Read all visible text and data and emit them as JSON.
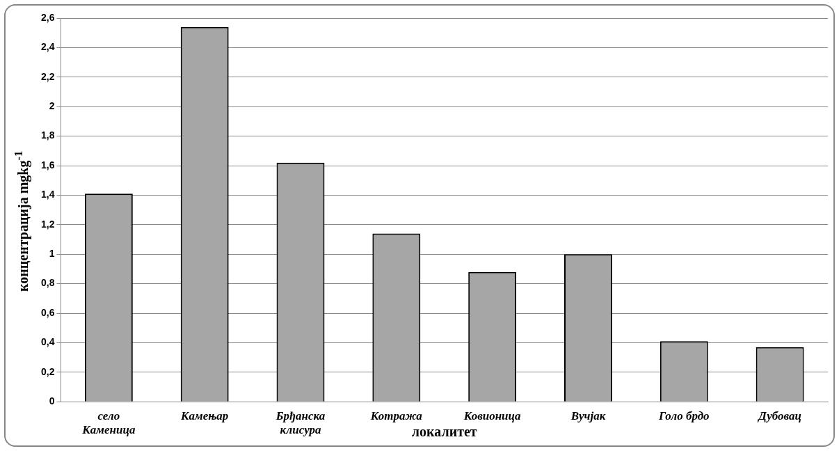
{
  "chart_data": {
    "type": "bar",
    "xlabel": "локалитет",
    "ylabel": "концентрација  mgkg$^{-1}$",
    "categories": [
      "село Каменица",
      "Камењар",
      "Брђанска клисура",
      "Котража",
      "Ковионица",
      "Вучјак",
      "Голо брдо",
      "Дубовац"
    ],
    "values": [
      1.41,
      2.54,
      1.62,
      1.14,
      0.88,
      1.0,
      0.41,
      0.37
    ],
    "color": "#a6a6a6",
    "ylim": [
      0,
      2.6
    ],
    "yticks": [
      {
        "value": 0,
        "label": "0"
      },
      {
        "value": 0.2,
        "label": "0,2"
      },
      {
        "value": 0.4,
        "label": "0,4"
      },
      {
        "value": 0.6,
        "label": "0,6"
      },
      {
        "value": 0.8,
        "label": "0,8"
      },
      {
        "value": 1,
        "label": "1"
      },
      {
        "value": 1.2,
        "label": "1,2"
      },
      {
        "value": 1.4,
        "label": "1,4"
      },
      {
        "value": 1.6,
        "label": "1,6"
      },
      {
        "value": 1.8,
        "label": "1,8"
      },
      {
        "value": 2,
        "label": "2"
      },
      {
        "value": 2.2,
        "label": "2,2"
      },
      {
        "value": 2.4,
        "label": "2,4"
      },
      {
        "value": 2.6,
        "label": "2,6"
      }
    ],
    "grid": "y",
    "legend": false
  }
}
